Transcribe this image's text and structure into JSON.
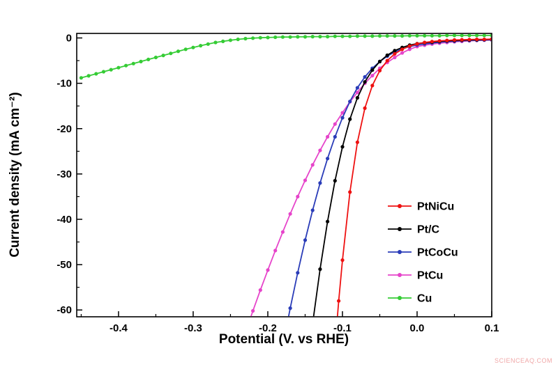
{
  "watermark": {
    "text": "SCIENCEAQ.COM",
    "color": "#f0a8a8"
  },
  "chart_data": {
    "type": "line",
    "title": "",
    "xlabel": "Potential (V. vs RHE)",
    "ylabel": "Current density (mA cm⁻²)",
    "xlim": [
      -0.456,
      0.1
    ],
    "ylim": [
      -61.5,
      1.0
    ],
    "x_ticks": [
      -0.4,
      -0.3,
      -0.2,
      -0.1,
      0.0,
      0.1
    ],
    "x_tick_labels": [
      "-0.4",
      "-0.3",
      "-0.2",
      "-0.1",
      "0.0",
      "0.1"
    ],
    "x_minor_ticks": [
      -0.45,
      -0.35,
      -0.25,
      -0.15,
      -0.05,
      0.05
    ],
    "y_ticks": [
      0,
      -10,
      -20,
      -30,
      -40,
      -50,
      -60
    ],
    "y_tick_labels": [
      "0",
      "-10",
      "-20",
      "-30",
      "-40",
      "-50",
      "-60"
    ],
    "y_minor_ticks": [
      -5,
      -15,
      -25,
      -35,
      -45,
      -55
    ],
    "grid": false,
    "legend_position": "inside-right",
    "axis_color": "#000000",
    "series": [
      {
        "name": "PtNiCu",
        "color": "#ee1111",
        "data": [
          [
            0.1,
            -0.25
          ],
          [
            0.09,
            -0.3
          ],
          [
            0.08,
            -0.3
          ],
          [
            0.07,
            -0.35
          ],
          [
            0.06,
            -0.4
          ],
          [
            0.05,
            -0.45
          ],
          [
            0.04,
            -0.55
          ],
          [
            0.03,
            -0.65
          ],
          [
            0.02,
            -0.8
          ],
          [
            0.01,
            -1.0
          ],
          [
            0.0,
            -1.3
          ],
          [
            -0.01,
            -1.8
          ],
          [
            -0.02,
            -2.5
          ],
          [
            -0.03,
            -3.5
          ],
          [
            -0.04,
            -5.0
          ],
          [
            -0.05,
            -7.2
          ],
          [
            -0.06,
            -10.5
          ],
          [
            -0.07,
            -15.5
          ],
          [
            -0.08,
            -23.0
          ],
          [
            -0.09,
            -34.0
          ],
          [
            -0.1,
            -49.0
          ],
          [
            -0.105,
            -58.0
          ],
          [
            -0.11,
            -68.0
          ]
        ]
      },
      {
        "name": "Pt/C",
        "color": "#000000",
        "data": [
          [
            0.1,
            -0.3
          ],
          [
            0.09,
            -0.35
          ],
          [
            0.08,
            -0.4
          ],
          [
            0.07,
            -0.45
          ],
          [
            0.06,
            -0.5
          ],
          [
            0.05,
            -0.55
          ],
          [
            0.04,
            -0.65
          ],
          [
            0.03,
            -0.75
          ],
          [
            0.02,
            -0.9
          ],
          [
            0.01,
            -1.05
          ],
          [
            0.0,
            -1.25
          ],
          [
            -0.01,
            -1.6
          ],
          [
            -0.02,
            -2.1
          ],
          [
            -0.03,
            -2.8
          ],
          [
            -0.04,
            -3.8
          ],
          [
            -0.05,
            -5.2
          ],
          [
            -0.06,
            -7.1
          ],
          [
            -0.07,
            -9.7
          ],
          [
            -0.08,
            -13.2
          ],
          [
            -0.09,
            -17.9
          ],
          [
            -0.1,
            -24.0
          ],
          [
            -0.11,
            -31.5
          ],
          [
            -0.12,
            -40.5
          ],
          [
            -0.13,
            -51.0
          ],
          [
            -0.14,
            -63.0
          ]
        ]
      },
      {
        "name": "PtCoCu",
        "color": "#2a3cb8",
        "data": [
          [
            0.1,
            -0.4
          ],
          [
            0.09,
            -0.45
          ],
          [
            0.08,
            -0.5
          ],
          [
            0.07,
            -0.55
          ],
          [
            0.06,
            -0.6
          ],
          [
            0.05,
            -0.7
          ],
          [
            0.04,
            -0.8
          ],
          [
            0.03,
            -0.95
          ],
          [
            0.02,
            -1.1
          ],
          [
            0.01,
            -1.3
          ],
          [
            0.0,
            -1.55
          ],
          [
            -0.01,
            -1.9
          ],
          [
            -0.02,
            -2.4
          ],
          [
            -0.03,
            -3.1
          ],
          [
            -0.04,
            -4.0
          ],
          [
            -0.05,
            -5.2
          ],
          [
            -0.06,
            -6.7
          ],
          [
            -0.07,
            -8.6
          ],
          [
            -0.08,
            -11.0
          ],
          [
            -0.09,
            -14.0
          ],
          [
            -0.1,
            -17.6
          ],
          [
            -0.11,
            -21.8
          ],
          [
            -0.12,
            -26.6
          ],
          [
            -0.13,
            -32.0
          ],
          [
            -0.14,
            -38.0
          ],
          [
            -0.15,
            -44.6
          ],
          [
            -0.16,
            -51.8
          ],
          [
            -0.17,
            -59.6
          ],
          [
            -0.18,
            -68.0
          ]
        ]
      },
      {
        "name": "PtCu",
        "color": "#e644ca",
        "data": [
          [
            0.1,
            -0.45
          ],
          [
            0.09,
            -0.5
          ],
          [
            0.08,
            -0.55
          ],
          [
            0.07,
            -0.65
          ],
          [
            0.06,
            -0.75
          ],
          [
            0.05,
            -0.85
          ],
          [
            0.04,
            -1.0
          ],
          [
            0.03,
            -1.15
          ],
          [
            0.02,
            -1.35
          ],
          [
            0.01,
            -1.6
          ],
          [
            0.0,
            -1.9
          ],
          [
            -0.01,
            -2.5
          ],
          [
            -0.02,
            -3.3
          ],
          [
            -0.03,
            -4.3
          ],
          [
            -0.04,
            -5.4
          ],
          [
            -0.05,
            -6.7
          ],
          [
            -0.06,
            -8.3
          ],
          [
            -0.07,
            -10.0
          ],
          [
            -0.08,
            -12.0
          ],
          [
            -0.09,
            -14.1
          ],
          [
            -0.1,
            -16.5
          ],
          [
            -0.11,
            -19.0
          ],
          [
            -0.12,
            -21.8
          ],
          [
            -0.13,
            -24.8
          ],
          [
            -0.14,
            -28.0
          ],
          [
            -0.15,
            -31.4
          ],
          [
            -0.16,
            -35.0
          ],
          [
            -0.17,
            -38.8
          ],
          [
            -0.18,
            -42.8
          ],
          [
            -0.19,
            -46.9
          ],
          [
            -0.2,
            -51.2
          ],
          [
            -0.21,
            -55.6
          ],
          [
            -0.22,
            -60.2
          ],
          [
            -0.23,
            -65.0
          ]
        ]
      },
      {
        "name": "Cu",
        "color": "#35cc35",
        "data": [
          [
            -0.45,
            -8.8
          ],
          [
            -0.44,
            -8.35
          ],
          [
            -0.43,
            -7.9
          ],
          [
            -0.42,
            -7.45
          ],
          [
            -0.41,
            -7.0
          ],
          [
            -0.4,
            -6.55
          ],
          [
            -0.39,
            -6.1
          ],
          [
            -0.38,
            -5.65
          ],
          [
            -0.37,
            -5.2
          ],
          [
            -0.36,
            -4.75
          ],
          [
            -0.35,
            -4.3
          ],
          [
            -0.34,
            -3.85
          ],
          [
            -0.33,
            -3.4
          ],
          [
            -0.32,
            -2.95
          ],
          [
            -0.31,
            -2.5
          ],
          [
            -0.3,
            -2.1
          ],
          [
            -0.29,
            -1.7
          ],
          [
            -0.28,
            -1.35
          ],
          [
            -0.27,
            -1.0
          ],
          [
            -0.26,
            -0.75
          ],
          [
            -0.25,
            -0.5
          ],
          [
            -0.24,
            -0.3
          ],
          [
            -0.23,
            -0.15
          ],
          [
            -0.22,
            -0.05
          ],
          [
            -0.21,
            0.05
          ],
          [
            -0.2,
            0.1
          ],
          [
            -0.19,
            0.15
          ],
          [
            -0.18,
            0.2
          ],
          [
            -0.17,
            0.2
          ],
          [
            -0.16,
            0.25
          ],
          [
            -0.15,
            0.25
          ],
          [
            -0.14,
            0.3
          ],
          [
            -0.13,
            0.3
          ],
          [
            -0.12,
            0.3
          ],
          [
            -0.11,
            0.35
          ],
          [
            -0.1,
            0.35
          ],
          [
            -0.09,
            0.35
          ],
          [
            -0.08,
            0.4
          ],
          [
            -0.07,
            0.4
          ],
          [
            -0.06,
            0.4
          ],
          [
            -0.05,
            0.45
          ],
          [
            -0.04,
            0.45
          ],
          [
            -0.03,
            0.45
          ],
          [
            -0.02,
            0.45
          ],
          [
            -0.01,
            0.5
          ],
          [
            0.0,
            0.5
          ],
          [
            0.01,
            0.5
          ],
          [
            0.02,
            0.5
          ],
          [
            0.03,
            0.5
          ],
          [
            0.04,
            0.55
          ],
          [
            0.05,
            0.55
          ],
          [
            0.06,
            0.55
          ],
          [
            0.07,
            0.55
          ],
          [
            0.08,
            0.55
          ],
          [
            0.09,
            0.55
          ],
          [
            0.1,
            0.55
          ]
        ]
      }
    ]
  }
}
